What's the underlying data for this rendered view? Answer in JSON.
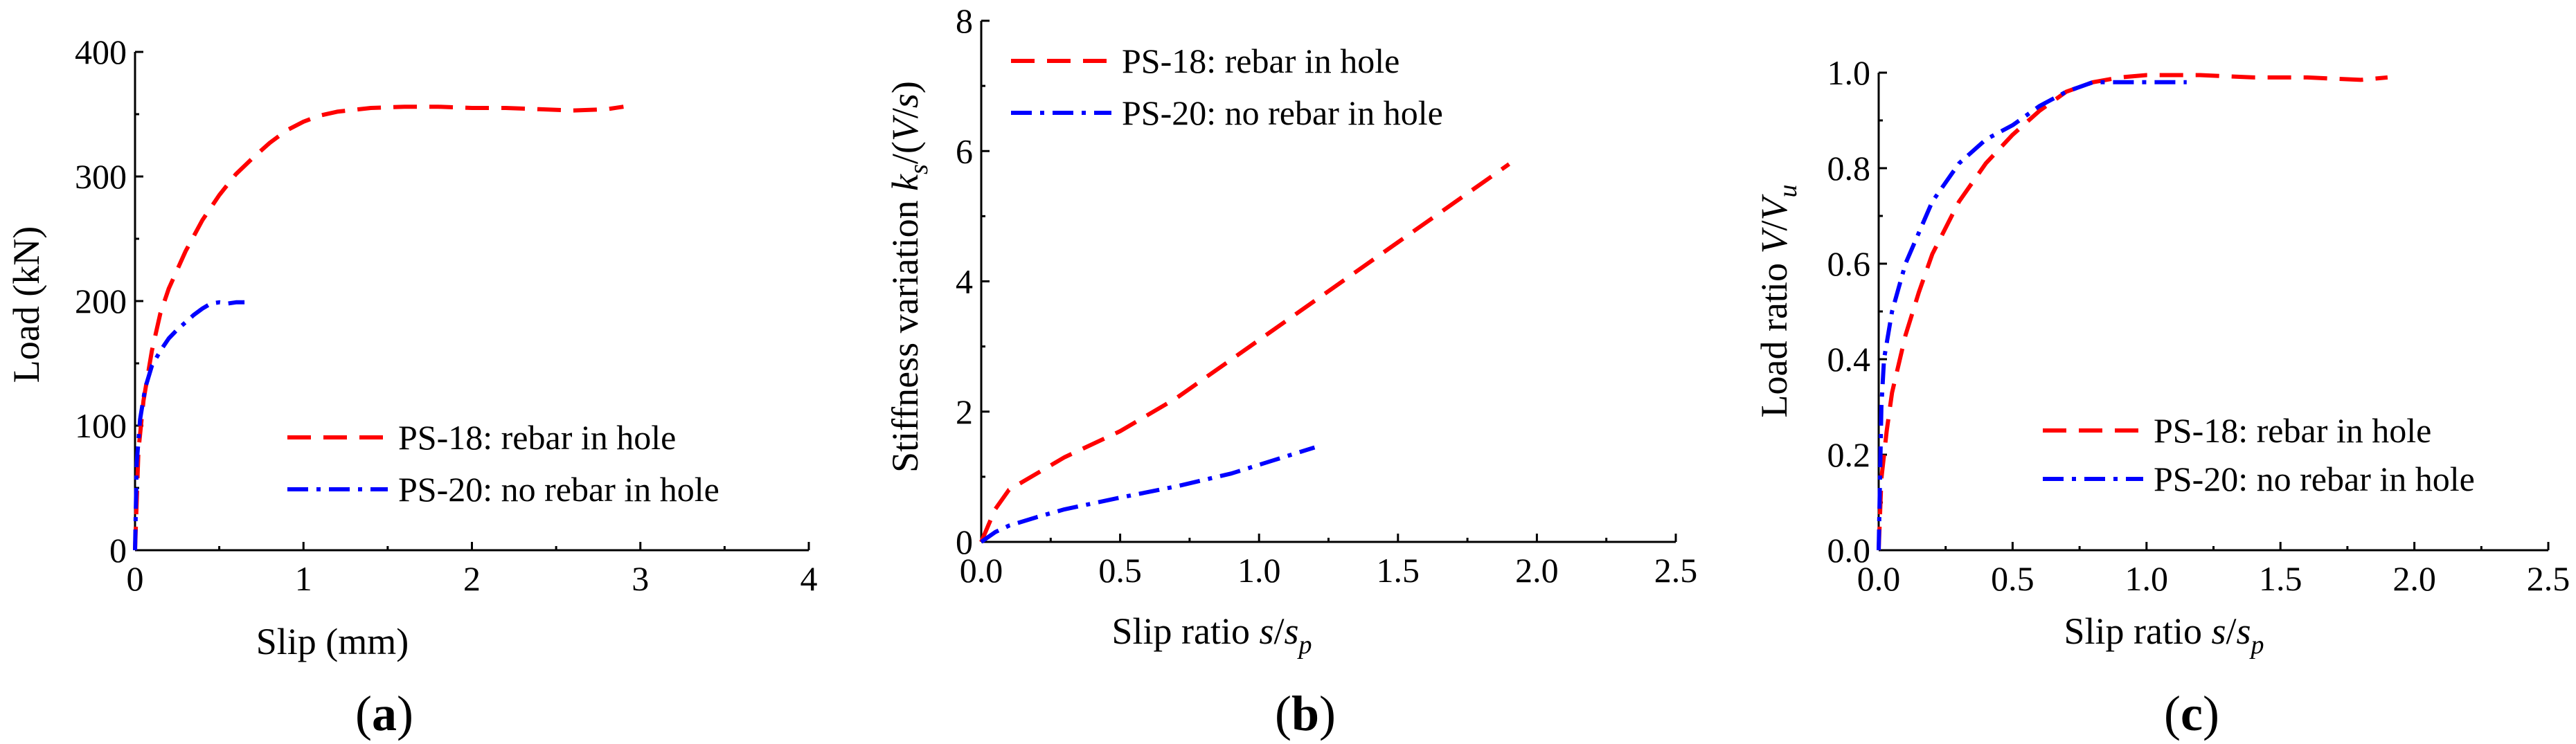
{
  "figure": {
    "panel_labels": [
      {
        "open": "(",
        "letter": "a",
        "close": ")"
      },
      {
        "open": "(",
        "letter": "b",
        "close": ")"
      },
      {
        "open": "(",
        "letter": "c",
        "close": ")"
      }
    ]
  },
  "colors": {
    "series_red": "#ff0000",
    "series_blue": "#0000ff",
    "axis": "#000000"
  },
  "chart_data": [
    {
      "type": "line",
      "panel": "a",
      "xlabel": "Slip (mm)",
      "ylabel": "Load (kN)",
      "xlim": [
        0,
        4
      ],
      "ylim": [
        0,
        400
      ],
      "xticks": [
        0,
        1,
        2,
        3,
        4
      ],
      "yticks": [
        0,
        100,
        200,
        300,
        400
      ],
      "xtick_labels": [
        "0",
        "1",
        "2",
        "3",
        "4"
      ],
      "ytick_labels": [
        "0",
        "100",
        "200",
        "300",
        "400"
      ],
      "legend_position": "lower-right",
      "series": [
        {
          "name": "PS-18: rebar in hole",
          "style": "dashed",
          "color": "#ff0000",
          "x": [
            0,
            0.02,
            0.05,
            0.1,
            0.15,
            0.2,
            0.3,
            0.4,
            0.5,
            0.6,
            0.7,
            0.8,
            0.9,
            1.0,
            1.1,
            1.2,
            1.4,
            1.6,
            1.8,
            2.0,
            2.2,
            2.4,
            2.6,
            2.8,
            2.9
          ],
          "y": [
            0,
            80,
            120,
            160,
            190,
            210,
            240,
            265,
            285,
            302,
            315,
            327,
            337,
            344,
            349,
            352,
            355,
            356,
            356,
            355,
            355,
            354,
            353,
            354,
            356
          ]
        },
        {
          "name": "PS-20: no rebar in hole",
          "style": "dash-dot",
          "color": "#0000ff",
          "x": [
            0,
            0.01,
            0.03,
            0.06,
            0.1,
            0.15,
            0.2,
            0.25,
            0.3,
            0.35,
            0.4,
            0.45,
            0.5,
            0.55,
            0.6,
            0.65
          ],
          "y": [
            0,
            70,
            105,
            130,
            148,
            160,
            170,
            177,
            183,
            189,
            194,
            198,
            199,
            198,
            199,
            199
          ]
        }
      ]
    },
    {
      "type": "line",
      "panel": "b",
      "xlabel_main": "Slip ratio ",
      "xlabel_s": "s",
      "xlabel_slash": "/",
      "xlabel_s2": "s",
      "xlabel_sub": "p",
      "ylabel_main": "Stiffness variation ",
      "ylabel_k": "k",
      "ylabel_ksub": "s",
      "ylabel_mid": "/(",
      "ylabel_V": "V",
      "ylabel_slash": "/",
      "ylabel_s": "s",
      "ylabel_close": ")",
      "xlim": [
        0,
        2.5
      ],
      "ylim": [
        0,
        8
      ],
      "xticks": [
        0,
        0.5,
        1.0,
        1.5,
        2.0,
        2.5
      ],
      "yticks": [
        0,
        2,
        4,
        6,
        8
      ],
      "xtick_labels": [
        "0.0",
        "0.5",
        "1.0",
        "1.5",
        "2.0",
        "2.5"
      ],
      "ytick_labels": [
        "0",
        "2",
        "4",
        "6",
        "8"
      ],
      "legend_position": "top-left",
      "series": [
        {
          "name": "PS-18: rebar in hole",
          "style": "dashed",
          "color": "#ff0000",
          "x": [
            0,
            0.05,
            0.1,
            0.2,
            0.3,
            0.5,
            0.7,
            0.9,
            1.1,
            1.3,
            1.5,
            1.7,
            1.9
          ],
          "y": [
            0,
            0.5,
            0.8,
            1.05,
            1.3,
            1.7,
            2.2,
            2.8,
            3.4,
            4.0,
            4.6,
            5.2,
            5.8
          ]
        },
        {
          "name": "PS-20: no rebar in hole",
          "style": "dash-dot",
          "color": "#0000ff",
          "x": [
            0,
            0.05,
            0.1,
            0.2,
            0.3,
            0.5,
            0.7,
            0.9,
            1.05,
            1.2
          ],
          "y": [
            0,
            0.15,
            0.25,
            0.38,
            0.5,
            0.68,
            0.85,
            1.05,
            1.25,
            1.45
          ]
        }
      ]
    },
    {
      "type": "line",
      "panel": "c",
      "xlabel_main": "Slip ratio ",
      "xlabel_s": "s",
      "xlabel_slash": "/",
      "xlabel_s2": "s",
      "xlabel_sub": "p",
      "ylabel_main": "Load ratio ",
      "ylabel_V": "V",
      "ylabel_slash": "/",
      "ylabel_V2": "V",
      "ylabel_sub": "u",
      "xlim": [
        0,
        2.5
      ],
      "ylim": [
        0,
        1.0
      ],
      "xticks": [
        0,
        0.5,
        1.0,
        1.5,
        2.0,
        2.5
      ],
      "yticks": [
        0,
        0.2,
        0.4,
        0.6,
        0.8,
        1.0
      ],
      "xtick_labels": [
        "0.0",
        "0.5",
        "1.0",
        "1.5",
        "2.0",
        "2.5"
      ],
      "ytick_labels": [
        "0.0",
        "0.2",
        "0.4",
        "0.6",
        "0.8",
        "1.0"
      ],
      "legend_position": "lower-right",
      "series": [
        {
          "name": "PS-18: rebar in hole",
          "style": "dashed",
          "color": "#ff0000",
          "x": [
            0,
            0.01,
            0.03,
            0.05,
            0.1,
            0.15,
            0.2,
            0.3,
            0.4,
            0.5,
            0.6,
            0.7,
            0.8,
            0.9,
            1.0,
            1.1,
            1.2,
            1.4,
            1.6,
            1.8,
            1.9
          ],
          "y": [
            0,
            0.15,
            0.25,
            0.33,
            0.45,
            0.54,
            0.62,
            0.73,
            0.81,
            0.87,
            0.92,
            0.96,
            0.98,
            0.99,
            0.995,
            0.995,
            0.995,
            0.99,
            0.99,
            0.985,
            0.99
          ]
        },
        {
          "name": "PS-20: no rebar in hole",
          "style": "dash-dot",
          "color": "#0000ff",
          "x": [
            0,
            0.01,
            0.02,
            0.05,
            0.1,
            0.2,
            0.3,
            0.4,
            0.5,
            0.6,
            0.7,
            0.8,
            0.9,
            1.0,
            1.1,
            1.15
          ],
          "y": [
            0,
            0.3,
            0.4,
            0.5,
            0.6,
            0.73,
            0.81,
            0.86,
            0.89,
            0.93,
            0.96,
            0.98,
            0.98,
            0.98,
            0.98,
            0.98
          ]
        }
      ]
    }
  ]
}
